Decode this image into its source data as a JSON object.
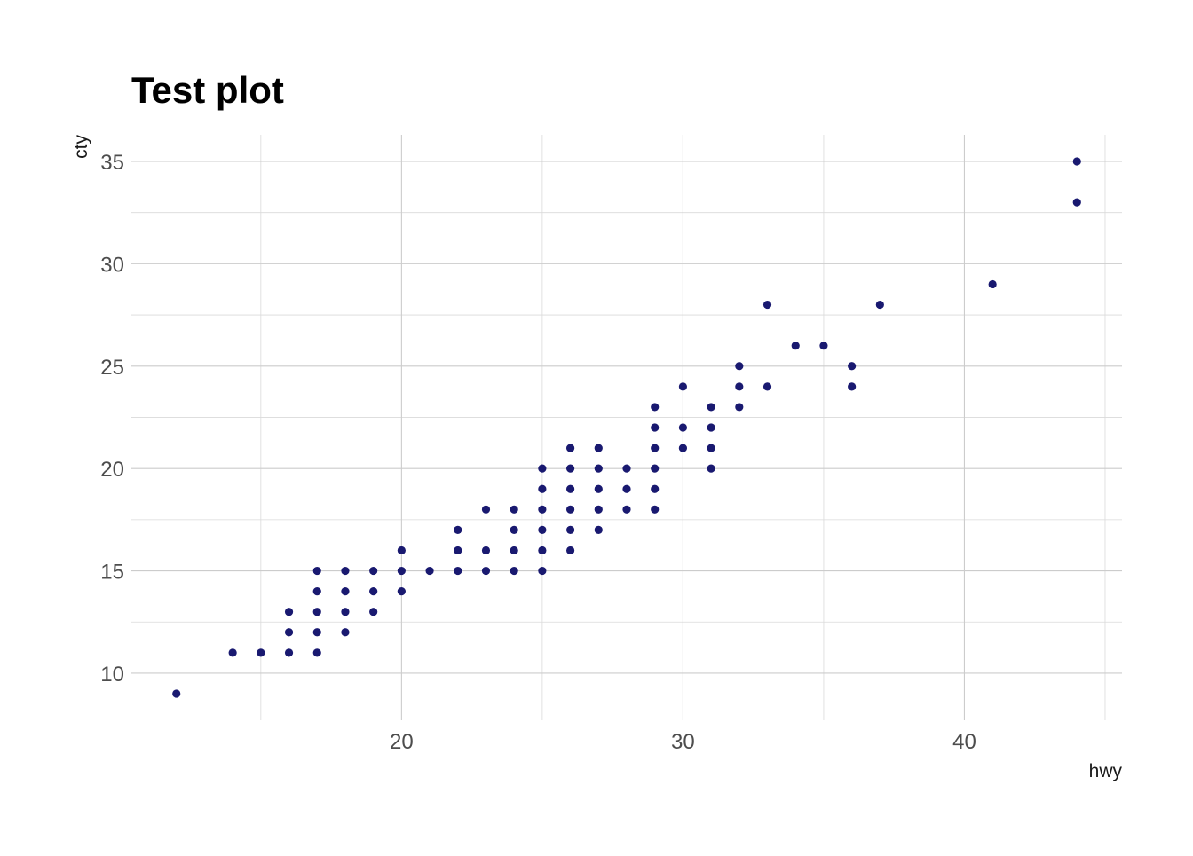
{
  "chart_data": {
    "type": "scatter",
    "title": "Test plot",
    "xlabel": "hwy",
    "ylabel": "cty",
    "xlim": [
      10.4,
      45.6
    ],
    "ylim": [
      7.7,
      36.3
    ],
    "x_ticks": [
      20,
      30,
      40
    ],
    "x_tick_labels": [
      "20",
      "30",
      "40"
    ],
    "x_minor_ticks": [
      15,
      25,
      35,
      45
    ],
    "y_ticks": [
      10,
      15,
      20,
      25,
      30,
      35
    ],
    "y_tick_labels": [
      "10",
      "15",
      "20",
      "25",
      "30",
      "35"
    ],
    "y_minor_ticks": [
      12.5,
      17.5,
      22.5,
      27.5,
      32.5
    ],
    "grid": true,
    "legend": "none",
    "point_color": "#191970",
    "points": [
      [
        12,
        9
      ],
      [
        14,
        11
      ],
      [
        15,
        11
      ],
      [
        16,
        11
      ],
      [
        16,
        12
      ],
      [
        16,
        13
      ],
      [
        17,
        11
      ],
      [
        17,
        12
      ],
      [
        17,
        13
      ],
      [
        17,
        14
      ],
      [
        17,
        15
      ],
      [
        18,
        12
      ],
      [
        18,
        13
      ],
      [
        18,
        14
      ],
      [
        18,
        15
      ],
      [
        19,
        13
      ],
      [
        19,
        14
      ],
      [
        19,
        15
      ],
      [
        20,
        14
      ],
      [
        20,
        15
      ],
      [
        20,
        16
      ],
      [
        21,
        15
      ],
      [
        22,
        15
      ],
      [
        22,
        16
      ],
      [
        22,
        17
      ],
      [
        23,
        15
      ],
      [
        23,
        16
      ],
      [
        23,
        18
      ],
      [
        24,
        15
      ],
      [
        24,
        16
      ],
      [
        24,
        17
      ],
      [
        24,
        18
      ],
      [
        25,
        15
      ],
      [
        25,
        16
      ],
      [
        25,
        17
      ],
      [
        25,
        18
      ],
      [
        25,
        19
      ],
      [
        25,
        20
      ],
      [
        26,
        16
      ],
      [
        26,
        17
      ],
      [
        26,
        18
      ],
      [
        26,
        19
      ],
      [
        26,
        20
      ],
      [
        26,
        21
      ],
      [
        27,
        17
      ],
      [
        27,
        18
      ],
      [
        27,
        19
      ],
      [
        27,
        20
      ],
      [
        27,
        21
      ],
      [
        28,
        18
      ],
      [
        28,
        19
      ],
      [
        28,
        20
      ],
      [
        29,
        18
      ],
      [
        29,
        19
      ],
      [
        29,
        20
      ],
      [
        29,
        21
      ],
      [
        29,
        22
      ],
      [
        29,
        23
      ],
      [
        30,
        21
      ],
      [
        30,
        22
      ],
      [
        30,
        24
      ],
      [
        31,
        20
      ],
      [
        31,
        21
      ],
      [
        31,
        22
      ],
      [
        31,
        23
      ],
      [
        32,
        23
      ],
      [
        32,
        24
      ],
      [
        32,
        25
      ],
      [
        33,
        24
      ],
      [
        33,
        28
      ],
      [
        34,
        26
      ],
      [
        35,
        26
      ],
      [
        36,
        24
      ],
      [
        36,
        25
      ],
      [
        37,
        28
      ],
      [
        41,
        29
      ],
      [
        44,
        33
      ],
      [
        44,
        35
      ]
    ]
  }
}
